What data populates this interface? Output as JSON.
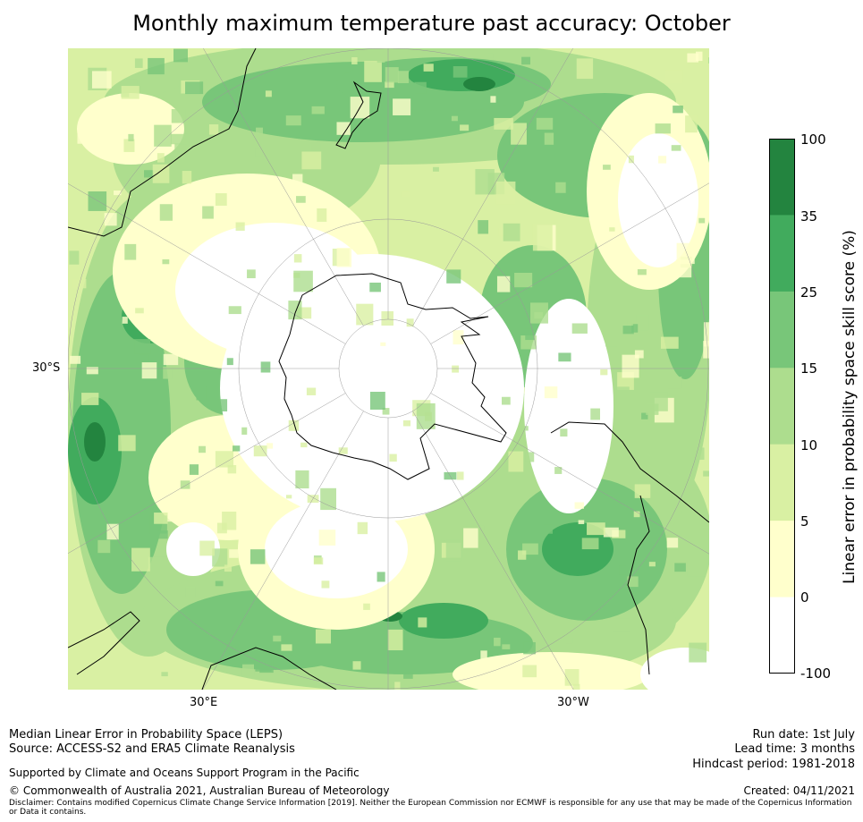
{
  "title": "Monthly maximum temperature past accuracy: October",
  "map": {
    "projection": "south-polar-stereographic",
    "lat_label": "30°S",
    "lon_labels": [
      "30°E",
      "30°W"
    ],
    "land_outline_color": "#000000",
    "graticule_color": "#999999"
  },
  "colorbar": {
    "label": "Linear error in probability space skill score (%)",
    "ticks": [
      "100",
      "35",
      "25",
      "15",
      "10",
      "5",
      "0",
      "-100"
    ],
    "bins": [
      {
        "range": "35 to 100",
        "color": "#23843f"
      },
      {
        "range": "25 to 35",
        "color": "#41ab5d"
      },
      {
        "range": "15 to 25",
        "color": "#78c679"
      },
      {
        "range": "10 to 15",
        "color": "#addd8e"
      },
      {
        "range": "5 to 10",
        "color": "#d9f0a3"
      },
      {
        "range": "0 to 5",
        "color": "#ffffcc"
      },
      {
        "range": "-100 to 0",
        "color": "#ffffff"
      }
    ]
  },
  "footer": {
    "left": {
      "line1": "Median Linear Error in Probability Space (LEPS)",
      "line2": "Source: ACCESS-S2 and ERA5 Climate Reanalysis",
      "support": "Supported by Climate and Oceans Support Program in the Pacific",
      "copyright": "© Commonwealth of Australia 2021, Australian Bureau of Meteorology"
    },
    "right": {
      "run_date": "Run date: 1st July",
      "lead_time": "Lead time: 3 months",
      "hindcast": "Hindcast period: 1981-2018",
      "created": "Created: 04/11/2021"
    },
    "disclaimer": "Disclaimer: Contains modified Copernicus Climate Change Service Information [2019]. Neither the European Commission nor ECMWF is responsible for any use that may be made of the Copernicus Information or Data it contains."
  }
}
